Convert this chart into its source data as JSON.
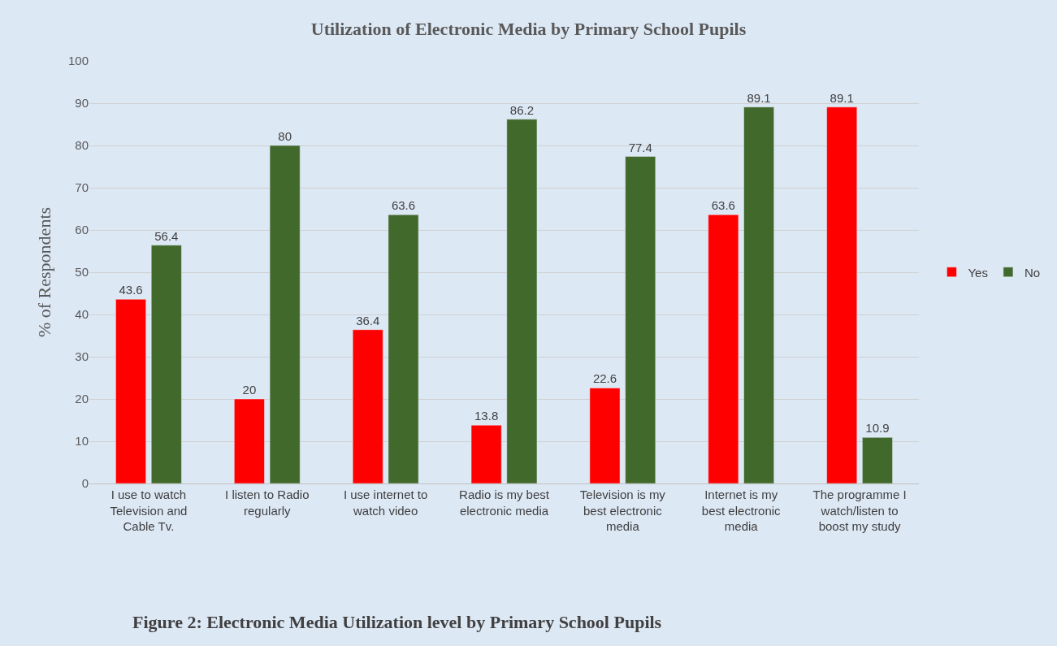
{
  "chart_data": {
    "type": "bar",
    "title": "Utilization of Electronic Media by Primary School Pupils",
    "ylabel": "% of Respondents",
    "categories": [
      "I use to watch Television and Cable Tv.",
      "I listen to Radio regularly",
      "I use internet to watch video",
      "Radio is my best electronic media",
      "Television is my best electronic media",
      "Internet is my best electronic media",
      "The programme I watch/listen to boost my study"
    ],
    "series": [
      {
        "name": "Yes",
        "color": "#ff0000",
        "values": [
          43.6,
          20,
          36.4,
          13.8,
          22.6,
          63.6,
          89.1
        ]
      },
      {
        "name": "No",
        "color": "#41692c",
        "values": [
          56.4,
          80,
          63.6,
          86.2,
          77.4,
          89.1,
          10.9
        ]
      }
    ],
    "ylim": [
      0,
      100
    ],
    "yticks": [
      0,
      10,
      20,
      30,
      40,
      50,
      60,
      70,
      80,
      90,
      100
    ],
    "grid": "y",
    "legend": "right",
    "data_labels": true,
    "annotations": [
      "Figure 2: Electronic Media Utilization level by Primary School Pupils"
    ]
  }
}
